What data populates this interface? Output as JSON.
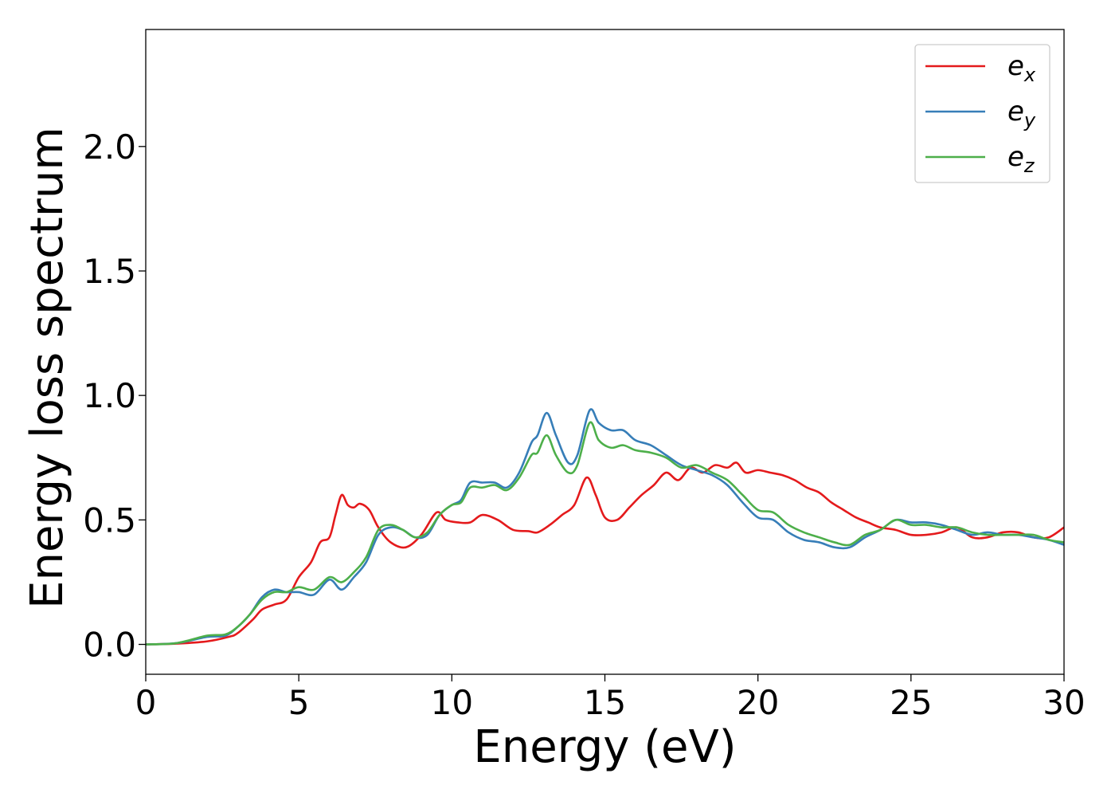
{
  "chart_data": {
    "type": "line",
    "title": "",
    "xlabel": "Energy (eV)",
    "ylabel": "Energy loss spectrum",
    "xlim": [
      0,
      30
    ],
    "ylim": [
      -0.12,
      2.47
    ],
    "xticks": [
      0,
      5,
      10,
      15,
      20,
      25,
      30
    ],
    "xtick_labels": [
      "0",
      "5",
      "10",
      "15",
      "20",
      "25",
      "30"
    ],
    "yticks": [
      0.0,
      0.5,
      1.0,
      1.5,
      2.0
    ],
    "ytick_labels": [
      "0.0",
      "0.5",
      "1.0",
      "1.5",
      "2.0"
    ],
    "grid": false,
    "legend_position": "top-right",
    "series": [
      {
        "name": "e",
        "subscript": "x",
        "color": "#e41a1c",
        "points": [
          [
            0,
            0
          ],
          [
            1,
            0.003
          ],
          [
            2,
            0.012
          ],
          [
            2.7,
            0.03
          ],
          [
            3,
            0.045
          ],
          [
            3.5,
            0.1
          ],
          [
            3.8,
            0.14
          ],
          [
            4.2,
            0.16
          ],
          [
            4.6,
            0.18
          ],
          [
            5.0,
            0.27
          ],
          [
            5.4,
            0.33
          ],
          [
            5.7,
            0.41
          ],
          [
            6.0,
            0.43
          ],
          [
            6.2,
            0.52
          ],
          [
            6.4,
            0.6
          ],
          [
            6.6,
            0.56
          ],
          [
            6.8,
            0.55
          ],
          [
            7.0,
            0.565
          ],
          [
            7.3,
            0.54
          ],
          [
            7.6,
            0.47
          ],
          [
            8.0,
            0.41
          ],
          [
            8.5,
            0.39
          ],
          [
            9.0,
            0.44
          ],
          [
            9.5,
            0.53
          ],
          [
            9.8,
            0.5
          ],
          [
            10.2,
            0.49
          ],
          [
            10.6,
            0.49
          ],
          [
            11.0,
            0.52
          ],
          [
            11.5,
            0.5
          ],
          [
            12.0,
            0.46
          ],
          [
            12.5,
            0.455
          ],
          [
            12.8,
            0.45
          ],
          [
            13.2,
            0.48
          ],
          [
            13.6,
            0.52
          ],
          [
            14.0,
            0.56
          ],
          [
            14.4,
            0.67
          ],
          [
            14.7,
            0.6
          ],
          [
            15.0,
            0.51
          ],
          [
            15.4,
            0.5
          ],
          [
            15.8,
            0.55
          ],
          [
            16.2,
            0.6
          ],
          [
            16.6,
            0.64
          ],
          [
            17.0,
            0.69
          ],
          [
            17.4,
            0.66
          ],
          [
            17.8,
            0.71
          ],
          [
            18.2,
            0.69
          ],
          [
            18.6,
            0.72
          ],
          [
            19.0,
            0.71
          ],
          [
            19.3,
            0.73
          ],
          [
            19.6,
            0.69
          ],
          [
            20.0,
            0.7
          ],
          [
            20.4,
            0.69
          ],
          [
            20.8,
            0.68
          ],
          [
            21.2,
            0.66
          ],
          [
            21.6,
            0.63
          ],
          [
            22.0,
            0.61
          ],
          [
            22.4,
            0.57
          ],
          [
            22.8,
            0.54
          ],
          [
            23.2,
            0.51
          ],
          [
            23.6,
            0.49
          ],
          [
            24.0,
            0.47
          ],
          [
            24.5,
            0.46
          ],
          [
            25.0,
            0.44
          ],
          [
            25.5,
            0.44
          ],
          [
            26.0,
            0.45
          ],
          [
            26.5,
            0.47
          ],
          [
            27.0,
            0.43
          ],
          [
            27.5,
            0.43
          ],
          [
            28.0,
            0.45
          ],
          [
            28.5,
            0.45
          ],
          [
            29.0,
            0.43
          ],
          [
            29.5,
            0.43
          ],
          [
            30.0,
            0.47
          ]
        ]
      },
      {
        "name": "e",
        "subscript": "y",
        "color": "#377eb8",
        "points": [
          [
            0,
            0
          ],
          [
            1,
            0.005
          ],
          [
            2,
            0.03
          ],
          [
            2.6,
            0.035
          ],
          [
            3,
            0.07
          ],
          [
            3.4,
            0.12
          ],
          [
            3.8,
            0.19
          ],
          [
            4.2,
            0.22
          ],
          [
            4.6,
            0.21
          ],
          [
            5.0,
            0.21
          ],
          [
            5.5,
            0.2
          ],
          [
            6.0,
            0.26
          ],
          [
            6.4,
            0.22
          ],
          [
            6.8,
            0.27
          ],
          [
            7.2,
            0.33
          ],
          [
            7.6,
            0.44
          ],
          [
            8.0,
            0.47
          ],
          [
            8.4,
            0.46
          ],
          [
            8.8,
            0.43
          ],
          [
            9.2,
            0.44
          ],
          [
            9.6,
            0.52
          ],
          [
            10.0,
            0.56
          ],
          [
            10.3,
            0.58
          ],
          [
            10.6,
            0.65
          ],
          [
            11.0,
            0.65
          ],
          [
            11.4,
            0.65
          ],
          [
            11.8,
            0.63
          ],
          [
            12.2,
            0.69
          ],
          [
            12.6,
            0.81
          ],
          [
            12.8,
            0.84
          ],
          [
            13.1,
            0.93
          ],
          [
            13.4,
            0.84
          ],
          [
            13.8,
            0.73
          ],
          [
            14.1,
            0.76
          ],
          [
            14.5,
            0.94
          ],
          [
            14.8,
            0.89
          ],
          [
            15.2,
            0.86
          ],
          [
            15.6,
            0.86
          ],
          [
            16.0,
            0.82
          ],
          [
            16.5,
            0.8
          ],
          [
            17.0,
            0.76
          ],
          [
            17.5,
            0.72
          ],
          [
            18.0,
            0.7
          ],
          [
            18.5,
            0.68
          ],
          [
            19.0,
            0.64
          ],
          [
            19.5,
            0.57
          ],
          [
            20.0,
            0.51
          ],
          [
            20.5,
            0.5
          ],
          [
            21.0,
            0.45
          ],
          [
            21.5,
            0.42
          ],
          [
            22.0,
            0.41
          ],
          [
            22.5,
            0.39
          ],
          [
            23.0,
            0.39
          ],
          [
            23.5,
            0.43
          ],
          [
            24.0,
            0.46
          ],
          [
            24.5,
            0.5
          ],
          [
            25.0,
            0.49
          ],
          [
            25.5,
            0.49
          ],
          [
            26.0,
            0.48
          ],
          [
            26.5,
            0.46
          ],
          [
            27.0,
            0.44
          ],
          [
            27.5,
            0.45
          ],
          [
            28.0,
            0.44
          ],
          [
            28.5,
            0.44
          ],
          [
            29.0,
            0.43
          ],
          [
            29.5,
            0.42
          ],
          [
            30.0,
            0.4
          ]
        ]
      },
      {
        "name": "e",
        "subscript": "z",
        "color": "#4daf4a",
        "points": [
          [
            0,
            0
          ],
          [
            1,
            0.005
          ],
          [
            2,
            0.035
          ],
          [
            2.6,
            0.04
          ],
          [
            3,
            0.07
          ],
          [
            3.4,
            0.12
          ],
          [
            3.8,
            0.18
          ],
          [
            4.2,
            0.21
          ],
          [
            4.6,
            0.21
          ],
          [
            5.0,
            0.23
          ],
          [
            5.5,
            0.22
          ],
          [
            6.0,
            0.27
          ],
          [
            6.4,
            0.25
          ],
          [
            6.8,
            0.29
          ],
          [
            7.2,
            0.35
          ],
          [
            7.6,
            0.46
          ],
          [
            8.0,
            0.48
          ],
          [
            8.4,
            0.46
          ],
          [
            8.8,
            0.43
          ],
          [
            9.2,
            0.45
          ],
          [
            9.6,
            0.52
          ],
          [
            10.0,
            0.56
          ],
          [
            10.3,
            0.57
          ],
          [
            10.6,
            0.63
          ],
          [
            11.0,
            0.63
          ],
          [
            11.4,
            0.64
          ],
          [
            11.8,
            0.62
          ],
          [
            12.2,
            0.67
          ],
          [
            12.6,
            0.76
          ],
          [
            12.8,
            0.77
          ],
          [
            13.1,
            0.84
          ],
          [
            13.4,
            0.76
          ],
          [
            13.8,
            0.69
          ],
          [
            14.1,
            0.72
          ],
          [
            14.5,
            0.89
          ],
          [
            14.8,
            0.82
          ],
          [
            15.2,
            0.79
          ],
          [
            15.6,
            0.8
          ],
          [
            16.0,
            0.78
          ],
          [
            16.5,
            0.77
          ],
          [
            17.0,
            0.75
          ],
          [
            17.5,
            0.71
          ],
          [
            18.0,
            0.72
          ],
          [
            18.5,
            0.69
          ],
          [
            19.0,
            0.66
          ],
          [
            19.5,
            0.6
          ],
          [
            20.0,
            0.54
          ],
          [
            20.5,
            0.53
          ],
          [
            21.0,
            0.48
          ],
          [
            21.5,
            0.45
          ],
          [
            22.0,
            0.43
          ],
          [
            22.5,
            0.41
          ],
          [
            23.0,
            0.4
          ],
          [
            23.5,
            0.44
          ],
          [
            24.0,
            0.46
          ],
          [
            24.5,
            0.5
          ],
          [
            25.0,
            0.48
          ],
          [
            25.5,
            0.48
          ],
          [
            26.0,
            0.47
          ],
          [
            26.5,
            0.47
          ],
          [
            27.0,
            0.45
          ],
          [
            27.5,
            0.44
          ],
          [
            28.0,
            0.44
          ],
          [
            28.5,
            0.44
          ],
          [
            29.0,
            0.44
          ],
          [
            29.5,
            0.42
          ],
          [
            30.0,
            0.41
          ]
        ]
      }
    ]
  }
}
